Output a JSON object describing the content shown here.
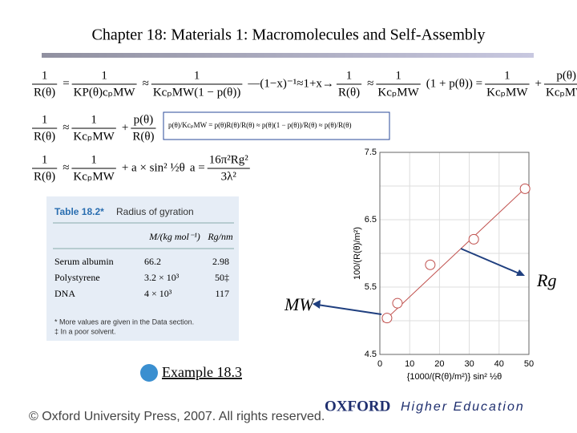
{
  "title": "Chapter 18: Materials 1: Macromolecules and Self-Assembly",
  "equations": [
    [
      {
        "num": "1",
        "den": "R(θ)"
      },
      "=",
      {
        "num": "1",
        "den": "KP(θ)cₚMW"
      },
      "≈",
      {
        "num": "1",
        "den": "KcₚMW(1 − p(θ))"
      },
      "—(1−x)⁻¹≈1+x→",
      {
        "num": "1",
        "den": "R(θ)"
      },
      "≈",
      {
        "num": "1",
        "den": "KcₚMW"
      },
      "(1 + p(θ)) =",
      {
        "num": "1",
        "den": "KcₚMW"
      },
      "+",
      {
        "num": "p(θ)",
        "den": "KcₚMW"
      }
    ],
    [
      {
        "num": "1",
        "den": "R(θ)"
      },
      "≈",
      {
        "num": "1",
        "den": "KcₚMW"
      },
      "+",
      {
        "num": "p(θ)",
        "den": "R(θ)"
      }
    ],
    [
      {
        "num": "1",
        "den": "R(θ)"
      },
      "≈",
      {
        "num": "1",
        "den": "KcₚMW"
      },
      "+ a × sin² ½θ",
      "a =",
      {
        "num": "16π²Rg²",
        "den": "3λ²"
      }
    ]
  ],
  "boxed_equation": "p(θ)/KcₚMW = p(θ)R(θ)/R(θ) ≈ p(θ)(1 − p(θ))/R(θ) ≈ p(θ)/R(θ)",
  "table": {
    "title": "Table 18.2*",
    "caption": "Radius of gyration",
    "header": [
      "M/(kg mol⁻¹)",
      "Rg/nm"
    ],
    "rows": [
      [
        "Serum albumin",
        "66.2",
        "2.98"
      ],
      [
        "Polystyrene",
        "3.2 × 10³",
        "50‡"
      ],
      [
        "DNA",
        "4 × 10³",
        "117"
      ]
    ],
    "notes": [
      "* More values are given in the Data section.",
      "‡ In a poor solvent."
    ]
  },
  "link": "Example 18.3",
  "chart_data": {
    "type": "scatter",
    "x_label": "{1000/(R(θ)/m²)} sin² ½θ",
    "y_label": "100/(R(θ)/m²)",
    "x": [
      2.4,
      5.9,
      16.9,
      31.5,
      48.7
    ],
    "values": [
      5.04,
      5.26,
      5.83,
      6.21,
      6.96
    ],
    "color": "#c0504d",
    "fit": {
      "x": [
        1,
        50
      ],
      "values": [
        4.98,
        7.02
      ]
    },
    "xlim": [
      0,
      50
    ],
    "ylim": [
      4.5,
      7.5
    ],
    "xticks": [
      0,
      10,
      20,
      30,
      40,
      50
    ],
    "yticks": [
      4.5,
      5.5,
      6.5,
      7.5
    ],
    "ygrid": [
      5,
      6,
      7
    ],
    "grid": true,
    "annotations": [
      "MW",
      "Rg"
    ]
  },
  "footer": {
    "copyright": "© Oxford University Press, 2007. All rights reserved.",
    "brand": "OXFORD",
    "division": "Higher Education"
  }
}
